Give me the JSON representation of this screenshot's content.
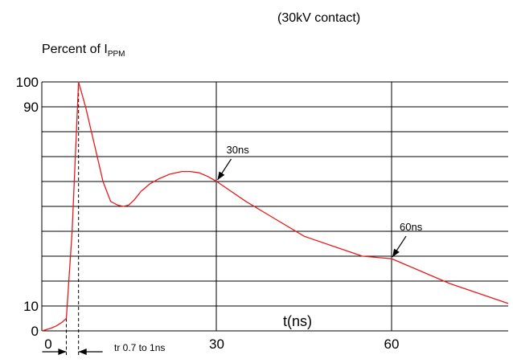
{
  "chart_data": {
    "type": "line",
    "title": "(30kV contact)",
    "ylabel_main": "Percent of I",
    "ylabel_sub": "PPM",
    "xlabel": "t(ns)",
    "x_ticks": [
      {
        "value": 0,
        "label": "0"
      },
      {
        "value": 30,
        "label": "30"
      },
      {
        "value": 60,
        "label": "60"
      }
    ],
    "y_ticks": [
      {
        "value": 0,
        "label": "0"
      },
      {
        "value": 10,
        "label": "10"
      },
      {
        "value": 90,
        "label": "90"
      },
      {
        "value": 100,
        "label": "100"
      }
    ],
    "xlim": [
      0,
      80
    ],
    "ylim": [
      0,
      100
    ],
    "grid": true,
    "series": [
      {
        "color": "#e8191b",
        "x": [
          0,
          1.5,
          2.5,
          3.5,
          4.2,
          5.2,
          6.3,
          7.5,
          9,
          10.5,
          11.8,
          13,
          14,
          14.9,
          15.8,
          17,
          18.5,
          20,
          22,
          24,
          25.5,
          27,
          28.5,
          30,
          35,
          40,
          45,
          50,
          55,
          60,
          65,
          70,
          75,
          80
        ],
        "y": [
          0,
          1,
          2,
          3.5,
          5,
          40,
          100,
          90,
          75,
          60,
          52,
          50.5,
          50,
          50.5,
          52.5,
          56,
          59,
          61,
          63,
          64,
          64,
          63.5,
          62,
          60,
          52,
          45,
          38,
          34,
          30,
          29,
          24,
          19,
          15,
          11
        ]
      }
    ],
    "annotations": [
      {
        "text": "30ns",
        "x": 30,
        "y": 60
      },
      {
        "text": "60ns",
        "x": 60,
        "y": 29
      },
      {
        "text": "tr 0.7 to 1ns"
      }
    ]
  }
}
